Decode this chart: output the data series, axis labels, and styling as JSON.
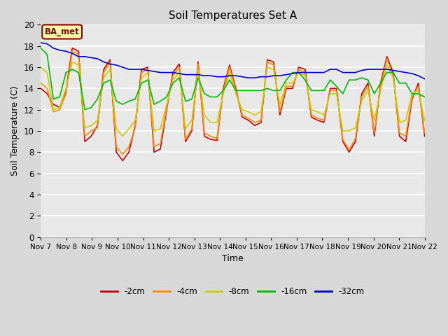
{
  "title": "Soil Temperatures Set A",
  "xlabel": "Time",
  "ylabel": "Soil Temperature (C)",
  "ylim": [
    0,
    20
  ],
  "yticks": [
    0,
    2,
    4,
    6,
    8,
    10,
    12,
    14,
    16,
    18,
    20
  ],
  "outer_bg": "#d8d8d8",
  "plot_bg": "#e8e8e8",
  "annotation_text": "BA_met",
  "annotation_box_color": "#ffffaa",
  "annotation_border_color": "#8b0000",
  "colors": {
    "-2cm": "#cc0000",
    "-4cm": "#ff8c00",
    "-8cm": "#cccc00",
    "-16cm": "#00bb00",
    "-32cm": "#0000cc"
  },
  "xtick_labels": [
    "Nov 7",
    "Nov 8",
    "Nov 9",
    "Nov 10",
    "Nov 11",
    "Nov 12",
    "Nov 13",
    "Nov 14",
    "Nov 15",
    "Nov 16",
    "Nov 17",
    "Nov 18",
    "Nov 19",
    "Nov 20",
    "Nov 21",
    "Nov 22"
  ],
  "n_days": 15,
  "series": {
    "-2cm": [
      14.0,
      13.5,
      12.5,
      12.2,
      13.8,
      17.8,
      17.5,
      9.0,
      9.5,
      10.5,
      15.8,
      16.7,
      8.0,
      7.2,
      8.0,
      10.5,
      15.8,
      16.0,
      8.0,
      8.3,
      12.0,
      15.5,
      16.3,
      9.0,
      10.0,
      16.5,
      9.5,
      9.2,
      9.1,
      14.0,
      16.2,
      14.0,
      11.3,
      11.0,
      10.5,
      10.8,
      16.7,
      16.5,
      11.5,
      14.0,
      14.0,
      16.0,
      15.8,
      11.3,
      11.0,
      10.8,
      14.0,
      14.0,
      9.0,
      8.0,
      9.0,
      13.5,
      14.5,
      9.5,
      14.5,
      17.0,
      15.5,
      9.5,
      9.0,
      13.0,
      14.5,
      9.5
    ],
    "-4cm": [
      14.5,
      14.0,
      11.8,
      12.0,
      13.5,
      17.5,
      17.2,
      9.5,
      10.0,
      10.3,
      15.5,
      16.5,
      8.5,
      7.8,
      8.5,
      10.3,
      15.5,
      15.8,
      8.5,
      8.8,
      12.2,
      15.2,
      16.0,
      9.2,
      10.2,
      16.3,
      9.8,
      9.5,
      9.3,
      13.8,
      16.0,
      13.8,
      11.5,
      11.2,
      10.8,
      11.0,
      16.5,
      16.2,
      11.8,
      14.2,
      14.2,
      15.8,
      15.5,
      11.5,
      11.2,
      11.0,
      13.8,
      13.8,
      9.2,
      8.2,
      9.3,
      13.2,
      14.2,
      9.8,
      14.2,
      16.8,
      15.2,
      9.8,
      9.5,
      13.2,
      14.2,
      9.8
    ],
    "-8cm": [
      16.0,
      15.5,
      12.0,
      12.2,
      14.0,
      16.5,
      16.2,
      10.3,
      10.5,
      11.0,
      15.0,
      15.8,
      10.2,
      9.5,
      10.2,
      11.0,
      15.0,
      15.5,
      10.0,
      10.2,
      12.5,
      14.8,
      15.5,
      10.2,
      11.0,
      15.8,
      11.5,
      10.8,
      10.8,
      13.5,
      15.5,
      13.5,
      12.0,
      11.8,
      11.5,
      11.8,
      16.0,
      15.8,
      12.5,
      14.5,
      14.5,
      15.5,
      15.2,
      12.0,
      11.8,
      11.5,
      13.5,
      13.5,
      10.0,
      10.0,
      10.3,
      12.8,
      13.8,
      11.0,
      13.8,
      16.2,
      15.0,
      10.8,
      11.0,
      13.5,
      13.8,
      11.0
    ],
    "-16cm": [
      17.8,
      17.2,
      13.0,
      13.2,
      15.5,
      15.8,
      15.5,
      12.0,
      12.2,
      13.0,
      14.5,
      14.8,
      12.8,
      12.5,
      12.8,
      13.0,
      14.5,
      14.8,
      12.5,
      12.8,
      13.2,
      14.5,
      15.0,
      12.8,
      13.0,
      15.0,
      13.5,
      13.2,
      13.2,
      13.8,
      14.8,
      13.8,
      13.8,
      13.8,
      13.8,
      13.8,
      14.0,
      13.8,
      13.8,
      14.8,
      15.5,
      15.5,
      14.8,
      13.8,
      13.8,
      13.8,
      14.8,
      14.2,
      13.5,
      14.8,
      14.8,
      15.0,
      14.8,
      13.5,
      14.5,
      15.5,
      15.5,
      14.5,
      14.5,
      13.5,
      13.5,
      13.2
    ],
    "-32cm": [
      18.3,
      18.2,
      17.8,
      17.6,
      17.5,
      17.3,
      17.0,
      17.0,
      16.9,
      16.8,
      16.5,
      16.3,
      16.2,
      16.0,
      15.8,
      15.8,
      15.8,
      15.7,
      15.6,
      15.5,
      15.5,
      15.5,
      15.4,
      15.3,
      15.3,
      15.3,
      15.2,
      15.2,
      15.1,
      15.1,
      15.2,
      15.2,
      15.1,
      15.0,
      15.0,
      15.1,
      15.1,
      15.2,
      15.2,
      15.3,
      15.4,
      15.5,
      15.5,
      15.5,
      15.5,
      15.5,
      15.8,
      15.8,
      15.5,
      15.5,
      15.5,
      15.7,
      15.8,
      15.8,
      15.8,
      15.8,
      15.7,
      15.6,
      15.5,
      15.4,
      15.2,
      14.9
    ]
  }
}
